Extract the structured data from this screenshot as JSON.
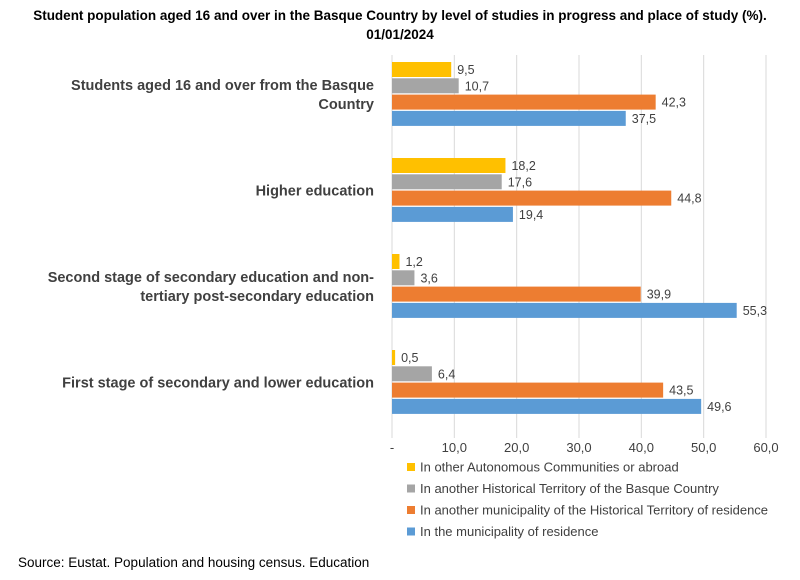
{
  "chart_data": {
    "type": "bar",
    "orientation": "horizontal",
    "title": "Student population aged 16 and over in the Basque Country by level of studies in progress and place of study (%). 01/01/2024",
    "title_lines": [
      "Student population aged 16 and over in the Basque Country by level of studies in progress and place of study (%).",
      "01/01/2024"
    ],
    "categories": [
      [
        "Students aged 16 and over from the Basque",
        "Country"
      ],
      [
        "Higher education"
      ],
      [
        "Second stage of secondary education and non-",
        "tertiary post-secondary education"
      ],
      [
        "First stage of secondary and lower education"
      ]
    ],
    "series": [
      {
        "name": "In other Autonomous Communities or abroad",
        "color": "#FFC000",
        "values": [
          9.5,
          18.2,
          1.2,
          0.5
        ],
        "labels": [
          "9,5",
          "18,2",
          "1,2",
          "0,5"
        ]
      },
      {
        "name": "In another Historical Territory of the Basque Country",
        "color": "#A5A5A5",
        "values": [
          10.7,
          17.6,
          3.6,
          6.4
        ],
        "labels": [
          "10,7",
          "17,6",
          "3,6",
          "6,4"
        ]
      },
      {
        "name": "In another municipality of the Historical Territory of residence",
        "color": "#ED7D31",
        "values": [
          42.3,
          44.8,
          39.9,
          43.5
        ],
        "labels": [
          "42,3",
          "44,8",
          "39,9",
          "43,5"
        ]
      },
      {
        "name": "In the municipality of residence",
        "color": "#5B9BD5",
        "values": [
          37.5,
          19.4,
          55.3,
          49.6
        ],
        "labels": [
          "37,5",
          "19,4",
          "55,3",
          "49,6"
        ]
      }
    ],
    "xlim": [
      0,
      60
    ],
    "xticks": [
      0,
      10,
      20,
      30,
      40,
      50,
      60
    ],
    "xtick_labels": [
      "-",
      "10,0",
      "20,0",
      "30,0",
      "40,0",
      "50,0",
      "60,0"
    ],
    "grid": "vertical",
    "legend_placement": "bottom"
  },
  "source": "Source: Eustat. Population and housing census. Education"
}
